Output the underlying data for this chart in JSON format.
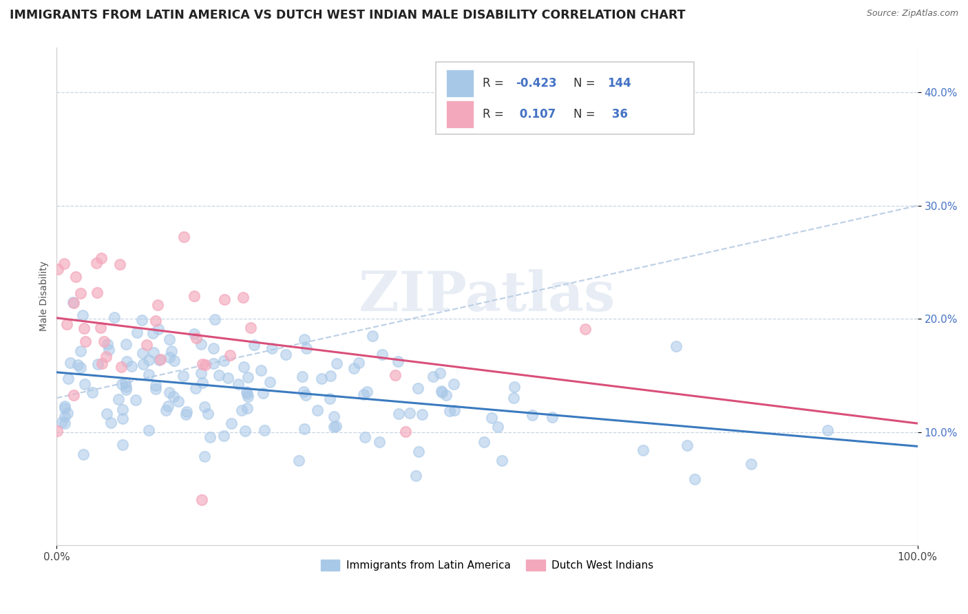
{
  "title": "IMMIGRANTS FROM LATIN AMERICA VS DUTCH WEST INDIAN MALE DISABILITY CORRELATION CHART",
  "source": "Source: ZipAtlas.com",
  "ylabel": "Male Disability",
  "xlim": [
    0.0,
    1.0
  ],
  "ylim": [
    0.0,
    0.44
  ],
  "ytick_positions": [
    0.1,
    0.2,
    0.3,
    0.4
  ],
  "yticklabels": [
    "10.0%",
    "20.0%",
    "30.0%",
    "40.0%"
  ],
  "blue_R": -0.423,
  "blue_N": 144,
  "pink_R": 0.107,
  "pink_N": 36,
  "blue_color": "#a8c8e8",
  "pink_color": "#f4a8bc",
  "blue_line_color": "#3a7abf",
  "pink_line_color": "#d94f7a",
  "dashed_line_color": "#b8cce4",
  "background_color": "#ffffff",
  "grid_color": "#c8d4e4",
  "legend_label_blue": "Immigrants from Latin America",
  "legend_label_pink": "Dutch West Indians",
  "watermark": "ZIPatlas",
  "title_fontsize": 12.5,
  "axis_fontsize": 10,
  "tick_fontsize": 11,
  "scatter_size": 120
}
